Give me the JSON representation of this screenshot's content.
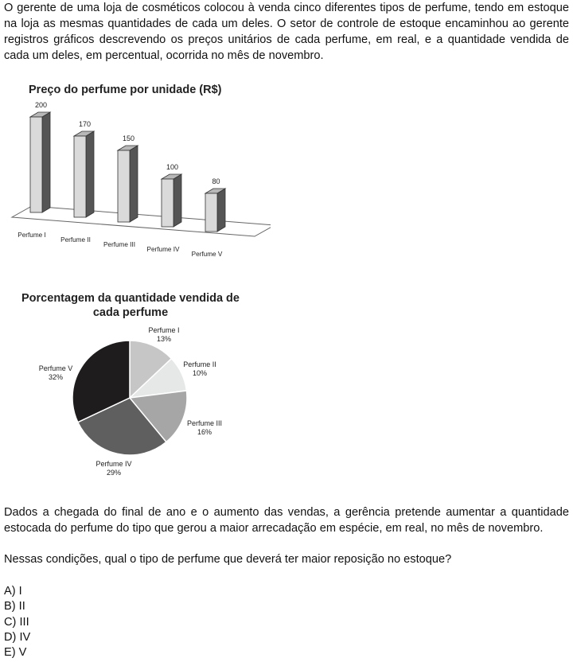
{
  "intro": "O gerente de uma loja de cosméticos colocou à venda cinco diferentes tipos de perfume, tendo em estoque na loja as mesmas quantidades de cada um deles. O setor de controle de estoque encaminhou ao gerente registros gráficos descrevendo os preços unitários de cada perfume, em real, e a quantidade vendida de cada um deles, em percentual, ocorrida no mês de novembro.",
  "chart_data": [
    {
      "type": "bar",
      "title": "Preço do perfume por unidade (R$)",
      "categories": [
        "Perfume I",
        "Perfume II",
        "Perfume III",
        "Perfume IV",
        "Perfume V"
      ],
      "values": [
        200,
        170,
        150,
        100,
        80
      ],
      "colors": {
        "front": "#dadada",
        "side": "#555555",
        "top": "#b8b8b8"
      }
    },
    {
      "type": "pie",
      "title": "Porcentagem da quantidade vendida de cada perfume",
      "slices": [
        {
          "label": "Perfume I",
          "value": 13,
          "display": "13%",
          "color": "#c6c6c6"
        },
        {
          "label": "Perfume II",
          "value": 10,
          "display": "10%",
          "color": "#e6e8e8"
        },
        {
          "label": "Perfume III",
          "value": 16,
          "display": "16%",
          "color": "#a6a6a6"
        },
        {
          "label": "Perfume IV",
          "value": 29,
          "display": "29%",
          "color": "#5f5f5f"
        },
        {
          "label": "Perfume V",
          "value": 32,
          "display": "32%",
          "color": "#1e1c1d"
        }
      ]
    }
  ],
  "para2": "Dados a chegada do final de ano e o aumento das vendas, a gerência pretende aumentar a quantidade estocada do perfume do tipo que gerou a maior arrecadação em espécie, em real, no mês de novembro.",
  "question": "Nessas condições, qual o tipo de perfume que deverá ter maior reposição no estoque?",
  "options": [
    "A) I",
    "B) II",
    "C) III",
    "D) IV",
    "E) V"
  ]
}
